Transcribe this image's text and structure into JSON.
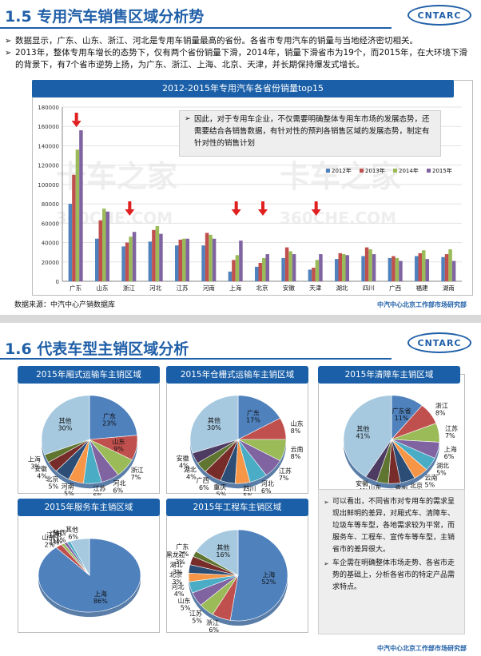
{
  "slide1": {
    "title": "1.5 专用汽车销售区域分析势",
    "logo_text": "CNTARC",
    "bullets": [
      "数据显示，广东、山东、浙江、河北是专用车销量最高的省份。各省市专用汽车的销量与当地经济密切相关。",
      "2013年，整体专用车增长的态势下，仅有两个省份销量下滑，2014年，销量下滑省市为19个，而2015年，在大环境下滑的背景下，有7个省市逆势上扬，为广东、浙江、上海、北京、天津，并长期保持爆发式增长。"
    ],
    "note": "因此，对于专用车企业，不仅需要明确整体专用车市场的发展态势，还需要结合各销售数据，有针对性的预判各销售区域的发展态势，制定有针对性的销售计划",
    "source": "数据来源：中汽中心产销数据库",
    "footer": "中汽中心北京工作部市场研究部",
    "watermark_line1": "卡车之家",
    "watermark_line2": "360CHE.COM"
  },
  "chart_data": [
    {
      "type": "bar",
      "title": "2012-2015年专用汽车各省份销量top15",
      "categories": [
        "广东",
        "山东",
        "浙江",
        "河北",
        "江苏",
        "河南",
        "上海",
        "北京",
        "安徽",
        "天津",
        "湖北",
        "四川",
        "广西",
        "福建",
        "湖南"
      ],
      "series": [
        {
          "name": "2012年",
          "values": [
            80000,
            44000,
            36000,
            41000,
            37000,
            37000,
            10000,
            15000,
            24000,
            12000,
            23000,
            26000,
            24000,
            26000,
            25000
          ]
        },
        {
          "name": "2013年",
          "values": [
            110000,
            63000,
            40000,
            53000,
            43000,
            50000,
            22000,
            19000,
            35000,
            14000,
            29000,
            35000,
            26000,
            29000,
            28000
          ]
        },
        {
          "name": "2014年",
          "values": [
            136000,
            75000,
            46000,
            57000,
            44000,
            48000,
            27000,
            24000,
            31000,
            22000,
            28000,
            33000,
            24000,
            32000,
            33000
          ]
        },
        {
          "name": "2015年",
          "values": [
            156000,
            72000,
            51000,
            49000,
            44000,
            44000,
            42000,
            28000,
            28000,
            28000,
            27000,
            28000,
            21000,
            23000,
            21000
          ]
        }
      ],
      "ylim": [
        0,
        180000
      ],
      "yticks": [
        0,
        20000,
        40000,
        60000,
        80000,
        100000,
        120000,
        140000,
        160000,
        180000
      ],
      "colors": [
        "#4f81bd",
        "#c0504d",
        "#9bbb59",
        "#8064a2"
      ],
      "arrows": [
        "广东",
        "浙江",
        "上海",
        "北京",
        "天津"
      ],
      "legend_position": "top-right"
    },
    {
      "type": "pie",
      "title": "2015年厢式运输车主销区域",
      "slices": [
        {
          "name": "广东",
          "value": 23
        },
        {
          "name": "山东",
          "value": 9
        },
        {
          "name": "浙江",
          "value": 7
        },
        {
          "name": "河北",
          "value": 6
        },
        {
          "name": "江苏",
          "value": 6
        },
        {
          "name": "河南",
          "value": 5
        },
        {
          "name": "北京",
          "value": 5
        },
        {
          "name": "安徽",
          "value": 4
        },
        {
          "name": "上海",
          "value": 3
        },
        {
          "name": "其他",
          "value": 30
        }
      ]
    },
    {
      "type": "pie",
      "title": "2015年仓栅式运输车主销区域",
      "slices": [
        {
          "name": "广东",
          "value": 17
        },
        {
          "name": "山东",
          "value": 8
        },
        {
          "name": "云南",
          "value": 8
        },
        {
          "name": "江苏",
          "value": 7
        },
        {
          "name": "河北",
          "value": 6
        },
        {
          "name": "四川",
          "value": 5
        },
        {
          "name": "重庆",
          "value": 5
        },
        {
          "name": "广西",
          "value": 6
        },
        {
          "name": "湖北",
          "value": 4
        },
        {
          "name": "安徽",
          "value": 4
        },
        {
          "name": "其他",
          "value": 30
        }
      ]
    },
    {
      "type": "pie",
      "title": "2015年清障车主销区域",
      "slices": [
        {
          "name": "广东省",
          "value": 11
        },
        {
          "name": "浙江",
          "value": 8
        },
        {
          "name": "江苏",
          "value": 7
        },
        {
          "name": "上海",
          "value": 6
        },
        {
          "name": "湖北",
          "value": 5
        },
        {
          "name": "云南",
          "value": 5
        },
        {
          "name": "北京",
          "value": 5
        },
        {
          "name": "贵州",
          "value": 4
        },
        {
          "name": "山东",
          "value": 4
        },
        {
          "name": "安徽",
          "value": 4
        },
        {
          "name": "其他",
          "value": 41
        }
      ]
    },
    {
      "type": "pie",
      "title": "2015年服务车主销区域",
      "slices": [
        {
          "name": "上海",
          "value": 86
        },
        {
          "name": "山东",
          "value": 2
        },
        {
          "name": "江西",
          "value": 1
        },
        {
          "name": "江苏",
          "value": 1
        },
        {
          "name": "陕西",
          "value": 1
        },
        {
          "name": "其他",
          "value": 6
        }
      ]
    },
    {
      "type": "pie",
      "title": "2015年工程车主销区域",
      "slices": [
        {
          "name": "上海",
          "value": 52
        },
        {
          "name": "浙江",
          "value": 6
        },
        {
          "name": "江苏",
          "value": 5
        },
        {
          "name": "山东",
          "value": 5
        },
        {
          "name": "河北",
          "value": 4
        },
        {
          "name": "北京",
          "value": 3
        },
        {
          "name": "湖北",
          "value": 3
        },
        {
          "name": "黑龙江",
          "value": 3
        },
        {
          "name": "广东",
          "value": 2
        },
        {
          "name": "其他",
          "value": 16
        }
      ]
    }
  ],
  "slide2": {
    "title": "1.6 代表车型主销区域分析",
    "logo_text": "CNTARC",
    "summary": [
      "可以看出，不同省市对专用车的需求呈现出鲜明的差异，对厢式车、清障车、垃圾车等车型，各地需求较为平常，而服务车、工程车、宣传车等车型，主销省市的差异很大。",
      "车企需在明确整体市场走势、各省市走势的基础上，分析各省市的特定产品需求特点。"
    ],
    "footer": "中汽中心北京工作部市场研究部"
  }
}
